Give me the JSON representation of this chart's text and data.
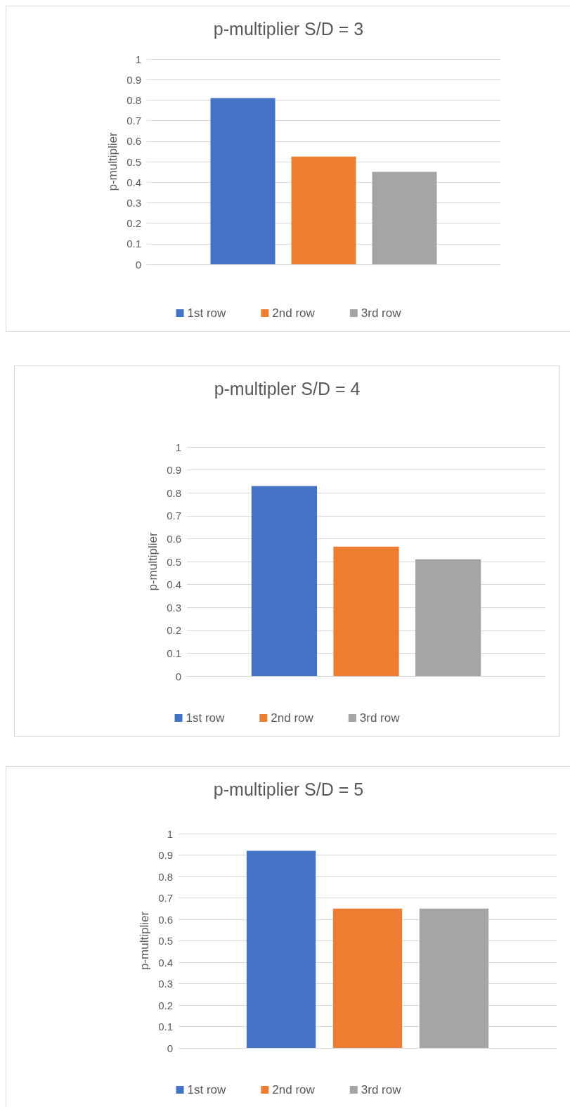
{
  "chart_data": [
    {
      "type": "bar",
      "title": "p-multiplier S/D = 3",
      "ylabel": "p-multiplier",
      "categories": [
        null
      ],
      "series": [
        {
          "name": "1st row",
          "color": "#4472c4",
          "values": [
            0.81
          ]
        },
        {
          "name": "2nd row",
          "color": "#ed7d31",
          "values": [
            0.525
          ]
        },
        {
          "name": "3rd row",
          "color": "#a5a5a5",
          "values": [
            0.45
          ]
        }
      ],
      "ylim": [
        0,
        1
      ],
      "yticks": [
        0,
        0.1,
        0.2,
        0.3,
        0.4,
        0.5,
        0.6,
        0.7,
        0.8,
        0.9,
        1
      ],
      "grid": "y",
      "legend": "bottom"
    },
    {
      "type": "bar",
      "title": "p-multipler S/D = 4",
      "ylabel": "p-multiplier",
      "categories": [
        null
      ],
      "series": [
        {
          "name": "1st row",
          "color": "#4472c4",
          "values": [
            0.83
          ]
        },
        {
          "name": "2nd row",
          "color": "#ed7d31",
          "values": [
            0.565
          ]
        },
        {
          "name": "3rd row",
          "color": "#a5a5a5",
          "values": [
            0.51
          ]
        }
      ],
      "ylim": [
        0,
        1
      ],
      "yticks": [
        0,
        0.1,
        0.2,
        0.3,
        0.4,
        0.5,
        0.6,
        0.7,
        0.8,
        0.9,
        1
      ],
      "grid": "y",
      "legend": "bottom"
    },
    {
      "type": "bar",
      "title": "p-multiplier S/D = 5",
      "ylabel": "p-multiplier",
      "categories": [
        null
      ],
      "series": [
        {
          "name": "1st row",
          "color": "#4472c4",
          "values": [
            0.92
          ]
        },
        {
          "name": "2nd row",
          "color": "#ed7d31",
          "values": [
            0.65
          ]
        },
        {
          "name": "3rd row",
          "color": "#a5a5a5",
          "values": [
            0.65
          ]
        }
      ],
      "ylim": [
        0,
        1
      ],
      "yticks": [
        0,
        0.1,
        0.2,
        0.3,
        0.4,
        0.5,
        0.6,
        0.7,
        0.8,
        0.9,
        1
      ],
      "grid": "y",
      "legend": "bottom"
    }
  ]
}
